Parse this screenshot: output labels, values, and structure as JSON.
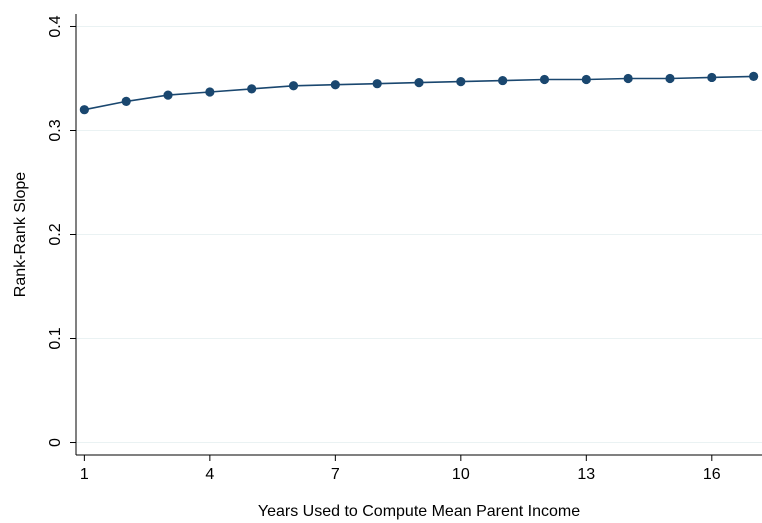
{
  "chart_data": {
    "type": "line",
    "title": "",
    "xlabel": "Years Used to Compute Mean Parent Income",
    "ylabel": "Rank-Rank Slope",
    "xlim": [
      0.8,
      17.2
    ],
    "ylim": [
      -0.012,
      0.412
    ],
    "xticks": [
      1,
      4,
      7,
      10,
      13,
      16
    ],
    "yticks": [
      0,
      0.1,
      0.2,
      0.3,
      0.4
    ],
    "xtick_labels": [
      "1",
      "4",
      "7",
      "10",
      "13",
      "16"
    ],
    "ytick_labels": [
      "0",
      "0.1",
      "0.2",
      "0.3",
      "0.4"
    ],
    "grid": true,
    "legend": false,
    "series": [
      {
        "color": "#1a476f",
        "marker": "circle",
        "x": [
          1,
          2,
          3,
          4,
          5,
          6,
          7,
          8,
          9,
          10,
          11,
          12,
          13,
          14,
          15,
          16,
          17
        ],
        "y": [
          0.32,
          0.328,
          0.334,
          0.337,
          0.34,
          0.343,
          0.344,
          0.345,
          0.346,
          0.347,
          0.348,
          0.349,
          0.349,
          0.35,
          0.35,
          0.351,
          0.352
        ]
      }
    ]
  }
}
